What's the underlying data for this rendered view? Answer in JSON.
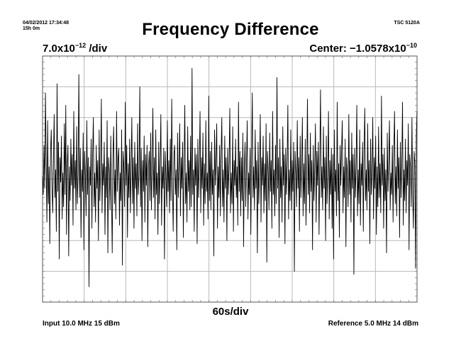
{
  "header": {
    "timestamp": "04/02/2012 17:34:48",
    "duration": "15h 0m",
    "instrument": "TSC 5120A"
  },
  "chart_data": {
    "type": "line",
    "title": "Frequency Difference",
    "y_scale_mantissa": "7.0x10",
    "y_scale_exp": "−12",
    "y_scale_unit": " /div",
    "center_prefix": "Center: −1.0578x10",
    "center_exp": "−10",
    "x_scale": "60s/div",
    "x_divisions": 9,
    "y_divisions": 8,
    "xlim": [
      0,
      540
    ],
    "ylim": [
      -4,
      4
    ],
    "grid": true,
    "legend": "none",
    "line_color": "#000000",
    "grid_color": "#b8b8b8",
    "series": [
      {
        "x_step": 1,
        "values": [
          0.1,
          -0.5,
          1.1,
          -0.3,
          2.8,
          0.5,
          -1.4,
          1.9,
          -0.8,
          0.4,
          -2.1,
          0.9,
          1.6,
          -0.2,
          -1.1,
          0.6,
          2.1,
          -0.6,
          0.3,
          -1.7,
          3.1,
          -0.4,
          1.2,
          -2.6,
          0.7,
          -0.1,
          1.4,
          -1.3,
          0.2,
          -0.9,
          1.8,
          -0.5,
          2.4,
          -1.8,
          0.5,
          1.1,
          -2.5,
          0.4,
          -0.7,
          1.3,
          -0.2,
          0.8,
          -1.5,
          2.2,
          -0.3,
          0.6,
          -1.0,
          1.7,
          -0.8,
          0.2,
          3.4,
          -0.6,
          1.0,
          -1.9,
          0.3,
          -0.4,
          1.5,
          -2.3,
          0.9,
          0.1,
          -1.2,
          1.9,
          -0.5,
          0.7,
          -3.5,
          0.4,
          -0.2,
          1.3,
          -1.6,
          0.8,
          2.0,
          -0.9,
          0.2,
          -1.4,
          1.1,
          -0.3,
          0.6,
          -2.0,
          1.6,
          -0.7,
          0.3,
          2.6,
          -1.1,
          0.5,
          -0.2,
          1.2,
          -1.8,
          0.4,
          -0.6,
          1.9,
          -2.4,
          0.7,
          0.2,
          -1.0,
          1.4,
          -0.5,
          -2.4,
          0.8,
          1.7,
          -0.8,
          0.3,
          -1.3,
          2.2,
          -0.4,
          0.6,
          1.0,
          -1.5,
          0.2,
          -0.7,
          1.6,
          -2.8,
          0.9,
          0.4,
          -0.9,
          2.5,
          -0.2,
          1.1,
          -1.9,
          0.5,
          -0.6,
          1.3,
          -1.1,
          0.3,
          2.0,
          -0.8,
          0.7,
          -1.6,
          1.2,
          -0.3,
          0.5,
          -1.2,
          1.8,
          -0.5,
          0.2,
          3.0,
          -0.9,
          1.0,
          -2.0,
          0.6,
          -0.4,
          1.4,
          -1.4,
          0.8,
          -0.2,
          1.1,
          -2.2,
          0.4,
          0.9,
          -0.7,
          1.5,
          -1.0,
          0.3,
          2.3,
          -0.6,
          0.7,
          -1.3,
          1.6,
          -0.5,
          0.2,
          -1.8,
          1.2,
          -0.8,
          0.5,
          2.1,
          -1.5,
          0.4,
          -0.3,
          1.0,
          -2.6,
          0.9,
          0.1,
          -0.9,
          1.9,
          -0.4,
          0.6,
          -1.1,
          1.3,
          -0.7,
          2.6,
          -0.2,
          -1.7,
          0.8,
          1.1,
          -0.5,
          0.3,
          -2.3,
          1.5,
          -0.6,
          0.4,
          1.8,
          -1.2,
          0.7,
          -0.3,
          1.2,
          -1.9,
          0.5,
          2.4,
          -0.8,
          0.2,
          -1.4,
          1.7,
          -0.4,
          0.6,
          -1.0,
          1.4,
          -0.9,
          3.6,
          -0.5,
          0.3,
          -1.7,
          1.0,
          -0.2,
          0.8,
          -2.1,
          1.3,
          -0.6,
          0.4,
          2.2,
          -1.1,
          0.7,
          -0.3,
          1.5,
          -1.5,
          0.5,
          -0.8,
          1.9,
          -0.4,
          0.2,
          -1.3,
          2.7,
          -0.7,
          0.9,
          -1.0,
          1.2,
          -0.5,
          0.3,
          -2.5,
          1.6,
          -0.2,
          0.6,
          1.8,
          -1.6,
          0.4,
          -0.6,
          1.1,
          -1.2,
          0.8,
          2.0,
          -0.9,
          0.3,
          -1.4,
          1.4,
          -0.3,
          0.7,
          -2.0,
          1.0,
          -0.5,
          0.5,
          2.3,
          -1.1,
          0.2,
          -0.8,
          1.7,
          -1.7,
          0.6,
          -0.2,
          1.3,
          -0.6,
          0.4,
          -1.5,
          2.5,
          -0.4,
          0.9,
          -1.2,
          0.7,
          -0.7,
          1.5,
          -2.2,
          0.3,
          1.2,
          -0.9,
          0.5,
          1.9,
          -1.3,
          0.2,
          -0.5,
          1.0,
          -1.8,
          0.8,
          2.8,
          -0.6,
          0.4,
          -1.0,
          1.6,
          -0.3,
          0.6,
          -2.4,
          1.2,
          -0.8,
          0.3,
          2.1,
          -1.4,
          0.7,
          -0.2,
          1.4,
          -1.1,
          0.5,
          -0.7,
          1.8,
          -2.7,
          0.9,
          0.2,
          -1.0,
          1.5,
          -0.4,
          0.6,
          -1.6,
          2.2,
          -0.5,
          0.3,
          -1.2,
          1.1,
          -0.8,
          3.3,
          -0.3,
          0.7,
          -1.9,
          1.3,
          -0.6,
          0.4,
          -1.4,
          1.7,
          -0.2,
          0.8,
          -2.1,
          1.0,
          -0.5,
          0.5,
          2.4,
          -1.3,
          0.3,
          -0.7,
          1.6,
          -1.0,
          0.6,
          -0.4,
          1.2,
          -3.0,
          0.9,
          0.2,
          -0.9,
          1.9,
          -0.3,
          0.7,
          -1.7,
          1.4,
          -0.6,
          0.4,
          2.0,
          -1.2,
          0.5,
          -0.8,
          1.3,
          -1.5,
          0.2,
          2.6,
          -0.5,
          0.8,
          -1.1,
          1.5,
          -0.4,
          0.6,
          -2.3,
          1.1,
          -0.7,
          0.3,
          1.8,
          -1.4,
          0.9,
          -0.2,
          1.2,
          -1.8,
          0.5,
          2.9,
          -0.6,
          0.4,
          -1.0,
          1.7,
          -0.3,
          0.7,
          -2.0,
          1.4,
          -0.8,
          0.2,
          2.2,
          -1.3,
          0.6,
          -0.5,
          1.0,
          -1.6,
          0.8,
          -2.6,
          1.6,
          -0.4,
          0.3,
          -1.2,
          2.5,
          -0.7,
          0.5,
          -1.9,
          1.1,
          -0.2,
          0.9,
          1.9,
          -1.1,
          0.4,
          -0.6,
          1.3,
          -2.2,
          0.7,
          0.2,
          -0.9,
          2.1,
          -0.5,
          0.6,
          -1.4,
          1.5,
          -0.3,
          0.8,
          -3.1,
          1.0,
          -0.6,
          0.4,
          2.4,
          -1.2,
          0.3,
          -0.8,
          1.6,
          -1.5,
          0.5,
          -0.2,
          1.2,
          -1.7,
          0.9,
          2.3,
          -0.7,
          0.3,
          -1.0,
          1.8,
          -0.4,
          0.6,
          -2.1,
          1.3,
          -0.5,
          0.2,
          2.0,
          -1.3,
          0.7,
          -0.3,
          1.4,
          -1.8,
          0.4,
          -0.9,
          1.7,
          -0.6,
          0.5,
          -1.1,
          2.7,
          -0.2,
          0.8,
          -1.6,
          1.0,
          -0.7,
          0.3,
          -2.4,
          1.5,
          -0.4,
          0.6,
          1.9,
          -1.0,
          0.2,
          -0.5,
          1.1,
          -1.4,
          0.9,
          2.2,
          -0.8,
          0.4,
          -1.2,
          1.6,
          -0.3,
          0.7,
          -1.9,
          1.2,
          -0.6,
          0.5,
          2.5,
          -1.5,
          0.3,
          -0.7,
          1.3,
          -1.1,
          0.6,
          -0.2,
          1.8,
          -2.3,
          0.8,
          0.4,
          -0.9,
          2.0,
          -0.5,
          -1.6,
          0.9,
          0.5,
          -2.9,
          1.4,
          2.2
        ]
      }
    ]
  },
  "footer": {
    "input": "Input 10.0 MHz 15 dBm",
    "reference": "Reference 5.0 MHz 14 dBm"
  }
}
